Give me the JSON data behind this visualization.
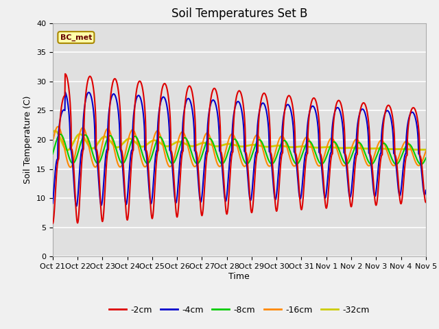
{
  "title": "Soil Temperatures Set B",
  "xlabel": "Time",
  "ylabel": "Soil Temperature (C)",
  "ylim": [
    0,
    40
  ],
  "yticks": [
    0,
    5,
    10,
    15,
    20,
    25,
    30,
    35,
    40
  ],
  "xtick_labels": [
    "Oct 21",
    "Oct 22",
    "Oct 23",
    "Oct 24",
    "Oct 25",
    "Oct 26",
    "Oct 27",
    "Oct 28",
    "Oct 29",
    "Oct 30",
    "Oct 31",
    "Nov 1",
    "Nov 2",
    "Nov 3",
    "Nov 4",
    "Nov 5"
  ],
  "legend_labels": [
    "-2cm",
    "-4cm",
    "-8cm",
    "-16cm",
    "-32cm"
  ],
  "legend_colors": [
    "#dd0000",
    "#0000cc",
    "#00cc00",
    "#ff8800",
    "#cccc00"
  ],
  "line_widths": [
    1.5,
    1.5,
    1.5,
    1.5,
    2.0
  ],
  "annotation_text": "BC_met",
  "background_color": "#e0e0e0",
  "fig_background": "#f0f0f0",
  "grid_color": "#ffffff",
  "title_fontsize": 12,
  "label_fontsize": 9,
  "tick_fontsize": 8
}
